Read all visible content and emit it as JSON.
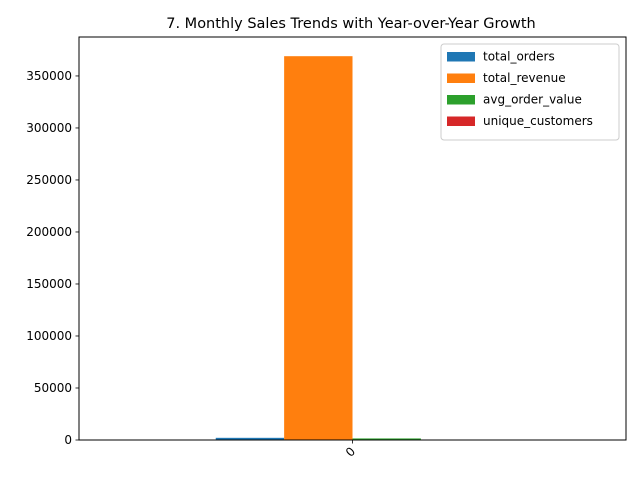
{
  "chart_data": {
    "type": "bar",
    "title": "7. Monthly Sales Trends with Year-over-Year Growth",
    "xlabel": "",
    "ylabel": "",
    "categories": [
      "0"
    ],
    "series": [
      {
        "name": "total_orders",
        "color": "#1f77b4",
        "values": [
          2100
        ]
      },
      {
        "name": "total_revenue",
        "color": "#ff7f0e",
        "values": [
          369000
        ]
      },
      {
        "name": "avg_order_value",
        "color": "#2ca02c",
        "values": [
          1500
        ]
      },
      {
        "name": "unique_customers",
        "color": "#d62728",
        "values": [
          400
        ]
      }
    ],
    "ylim": [
      0,
      387450
    ],
    "yticks": [
      0,
      50000,
      100000,
      150000,
      200000,
      250000,
      300000,
      350000
    ],
    "grid": false,
    "legend_position": "top-right",
    "xtick_rotation": -45
  }
}
